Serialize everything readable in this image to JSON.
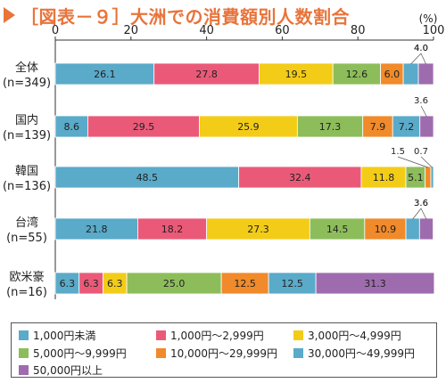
{
  "title": "［図表－９］大洲での消費額別人数割合",
  "chart_data": {
    "type": "bar",
    "orientation": "horizontal",
    "stacked": true,
    "unit_label": "(%)",
    "xlim": [
      0,
      100
    ],
    "x_ticks": [
      0,
      20,
      40,
      60,
      80,
      100
    ],
    "grid": false,
    "legend_position": "bottom",
    "categories": [
      "全体\n(n=349)",
      "国内\n(n=139)",
      "韓国\n(n=136)",
      "台湾\n(n=55)",
      "欧米豪\n(n=16)"
    ],
    "series": [
      {
        "name": "1,000円未満",
        "color": "#5aaac9",
        "values": [
          26.1,
          8.6,
          48.5,
          21.8,
          6.3
        ],
        "labels": [
          "26.1",
          "8.6",
          "48.5",
          "21.8",
          "6.3"
        ]
      },
      {
        "name": "1,000円～2,999円",
        "color": "#ea5a78",
        "values": [
          27.8,
          29.5,
          32.4,
          18.2,
          6.3
        ],
        "labels": [
          "27.8",
          "29.5",
          "32.4",
          "18.2",
          "6.3"
        ]
      },
      {
        "name": "3,000円～4,999円",
        "color": "#f3cc17",
        "values": [
          19.5,
          25.9,
          11.8,
          27.3,
          6.3
        ],
        "labels": [
          "19.5",
          "25.9",
          "11.8",
          "27.3",
          "6.3"
        ]
      },
      {
        "name": "5,000円～9,999円",
        "color": "#8dbd5a",
        "values": [
          12.6,
          17.3,
          5.1,
          14.5,
          25.0
        ],
        "labels": [
          "12.6",
          "17.3",
          "5.1",
          "14.5",
          "25.0"
        ]
      },
      {
        "name": "10,000円～29,999円",
        "color": "#f08a2a",
        "values": [
          6.0,
          7.9,
          1.5,
          10.9,
          12.5
        ],
        "labels": [
          "6.0",
          "7.9",
          "1.5",
          "10.9",
          "12.5"
        ]
      },
      {
        "name": "30,000円～49,999円",
        "color": "#5aaac9",
        "values": [
          4.0,
          7.2,
          0.7,
          3.6,
          12.5
        ],
        "labels": [
          "4.0",
          "7.2",
          "0.7",
          "3.6",
          "12.5"
        ]
      },
      {
        "name": "50,000円以上",
        "color": "#9e6cae",
        "values": [
          4.0,
          3.6,
          0.0,
          3.6,
          31.3
        ],
        "labels": [
          "4.0",
          "3.6",
          "",
          "3.6",
          "31.3"
        ]
      }
    ]
  }
}
